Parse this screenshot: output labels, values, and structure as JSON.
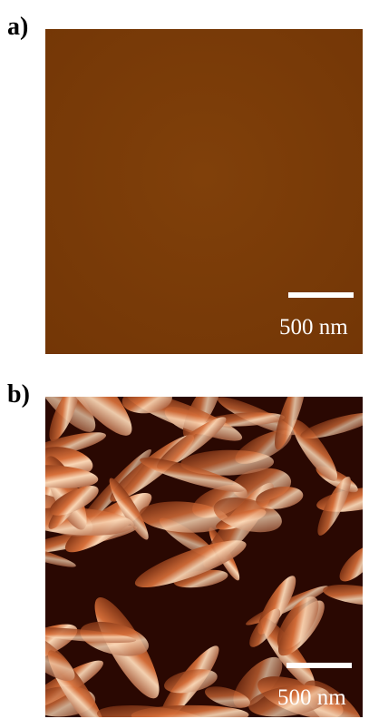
{
  "panels": [
    {
      "label": "a)",
      "scale_bar": "500 nm"
    },
    {
      "label": "b)",
      "scale_bar": "500 nm"
    }
  ]
}
